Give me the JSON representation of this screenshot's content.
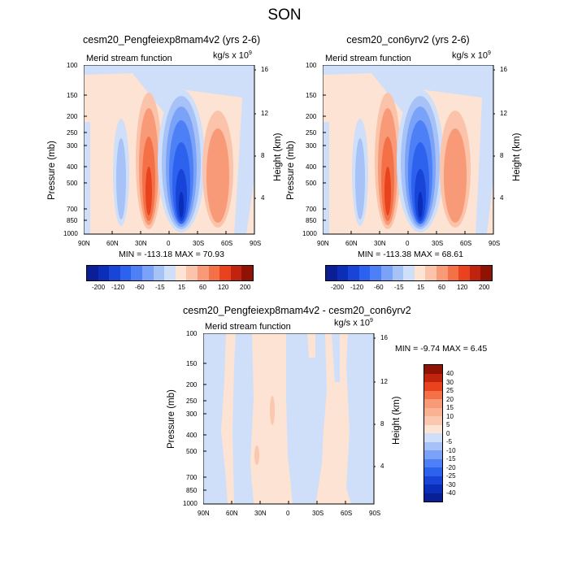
{
  "suptitle": "SON",
  "chart_data": [
    {
      "type": "contour",
      "title": "cesm20_Pengfeiexp8mam4v2 (yrs 2-6)",
      "left_label": "Merid stream function",
      "right_label": "kg/s x 10",
      "right_label_exp": "9",
      "ylabel": "Pressure (mb)",
      "ylabel_right": "Height (km)",
      "x_ticks": [
        "90N",
        "60N",
        "30N",
        "0",
        "30S",
        "60S",
        "90S"
      ],
      "y_ticks": [
        "100",
        "150",
        "200",
        "250",
        "300",
        "400",
        "500",
        "700",
        "850",
        "1000"
      ],
      "height_ticks": [
        "16",
        "12",
        "8",
        "4"
      ],
      "stats": "MIN = -113.18  MAX =  70.93",
      "min": -113.18,
      "max": 70.93
    },
    {
      "type": "contour",
      "title": "cesm20_con6yrv2 (yrs 2-6)",
      "left_label": "Merid stream function",
      "right_label": "kg/s x 10",
      "right_label_exp": "9",
      "ylabel": "Pressure (mb)",
      "ylabel_right": "Height (km)",
      "x_ticks": [
        "90N",
        "60N",
        "30N",
        "0",
        "30S",
        "60S",
        "90S"
      ],
      "y_ticks": [
        "100",
        "150",
        "200",
        "250",
        "300",
        "400",
        "500",
        "700",
        "850",
        "1000"
      ],
      "height_ticks": [
        "16",
        "12",
        "8",
        "4"
      ],
      "stats": "MIN = -113.38  MAX =  68.61",
      "min": -113.38,
      "max": 68.61
    },
    {
      "type": "contour",
      "title": "cesm20_Pengfeiexp8mam4v2 - cesm20_con6yrv2",
      "left_label": "Merid stream function",
      "right_label": "kg/s x 10",
      "right_label_exp": "9",
      "ylabel": "Pressure (mb)",
      "ylabel_right": "Height (km)",
      "x_ticks": [
        "90N",
        "60N",
        "30N",
        "0",
        "30S",
        "60S",
        "90S"
      ],
      "y_ticks": [
        "100",
        "150",
        "200",
        "250",
        "300",
        "400",
        "500",
        "700",
        "850",
        "1000"
      ],
      "height_ticks": [
        "16",
        "12",
        "8",
        "4"
      ],
      "stats": "MIN = -9.74  MAX =  6.45",
      "min": -9.74,
      "max": 6.45
    }
  ],
  "colorbar_top": {
    "labels": [
      "-200",
      "-120",
      "-60",
      "-15",
      "15",
      "60",
      "120",
      "200"
    ],
    "colors": [
      "#0a1e96",
      "#0b2eb8",
      "#1844d8",
      "#2d62ee",
      "#4d7ff7",
      "#7aa2f8",
      "#a6c2f7",
      "#cfdff9",
      "#fde3d3",
      "#fbc3aa",
      "#f89a77",
      "#f47147",
      "#e8431e",
      "#c0240e",
      "#8f1205"
    ]
  },
  "colorbar_diff": {
    "labels": [
      "40",
      "30",
      "25",
      "20",
      "15",
      "10",
      "5",
      "0",
      "-5",
      "-10",
      "-15",
      "-20",
      "-25",
      "-30",
      "-40"
    ],
    "colors": [
      "#8f1205",
      "#c0240e",
      "#e8431e",
      "#f47147",
      "#f89a77",
      "#fbb292",
      "#fbc7ae",
      "#fde3d3",
      "#cfdff9",
      "#a6c2f7",
      "#7aa2f8",
      "#4d7ff7",
      "#2d62ee",
      "#1844d8",
      "#0b2eb8",
      "#0a1e96"
    ]
  }
}
